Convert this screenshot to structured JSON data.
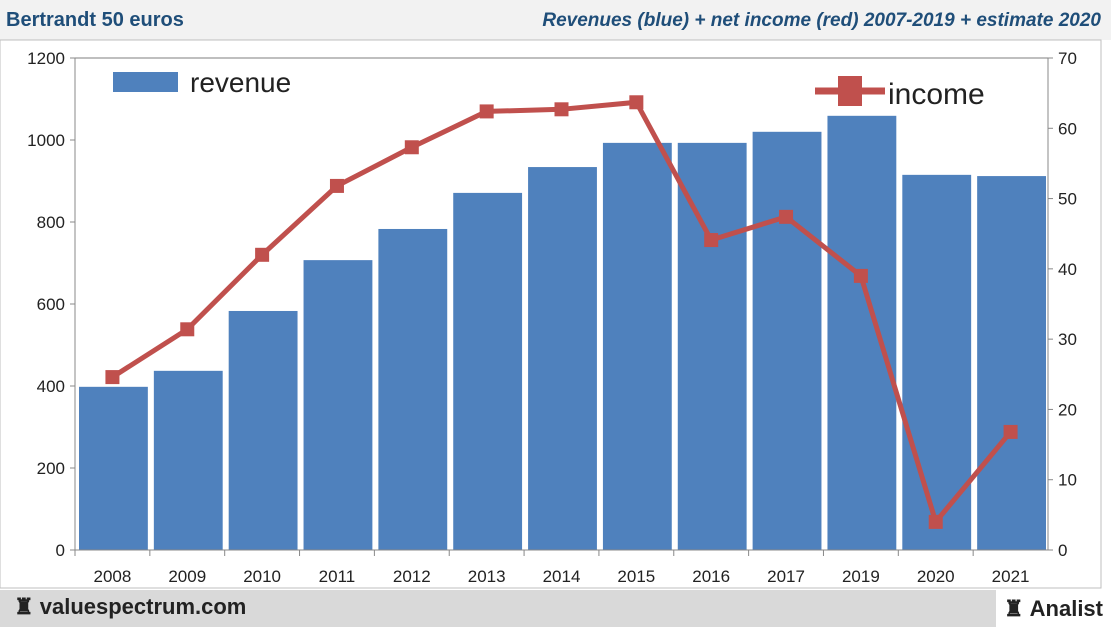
{
  "header": {
    "left": "Bertrandt 50 euros",
    "right": "Revenues (blue) + net income (red) 2007-2019 + estimate 2020"
  },
  "footer": {
    "left": "valuespectrum.com",
    "right": "Analist",
    "icon": "chess-rook-icon"
  },
  "chart_data": {
    "type": "bar+line",
    "categories": [
      "2008",
      "2009",
      "2010",
      "2011",
      "2012",
      "2013",
      "2014",
      "2015",
      "2016",
      "2017",
      "2019",
      "2020",
      "2021"
    ],
    "series": [
      {
        "name": "revenue",
        "type": "bar",
        "axis": "left",
        "color": "#4f81bd",
        "values": [
          398,
          437,
          583,
          707,
          783,
          871,
          934,
          993,
          993,
          1020,
          1059,
          915,
          912
        ]
      },
      {
        "name": "income",
        "type": "line",
        "axis": "right",
        "color": "#c0504d",
        "values": [
          24.6,
          31.4,
          42,
          51.8,
          57.3,
          62.4,
          62.7,
          63.7,
          44.1,
          47.4,
          39,
          4,
          16.8
        ]
      }
    ],
    "yleft": {
      "lim": [
        0,
        1200
      ],
      "ticks": [
        0,
        200,
        400,
        600,
        800,
        1000,
        1200
      ]
    },
    "yright": {
      "lim": [
        0,
        70
      ],
      "ticks": [
        0,
        10,
        20,
        30,
        40,
        50,
        60,
        70
      ]
    },
    "legend": {
      "revenue": "revenue",
      "income": "income",
      "placement": "top"
    }
  }
}
